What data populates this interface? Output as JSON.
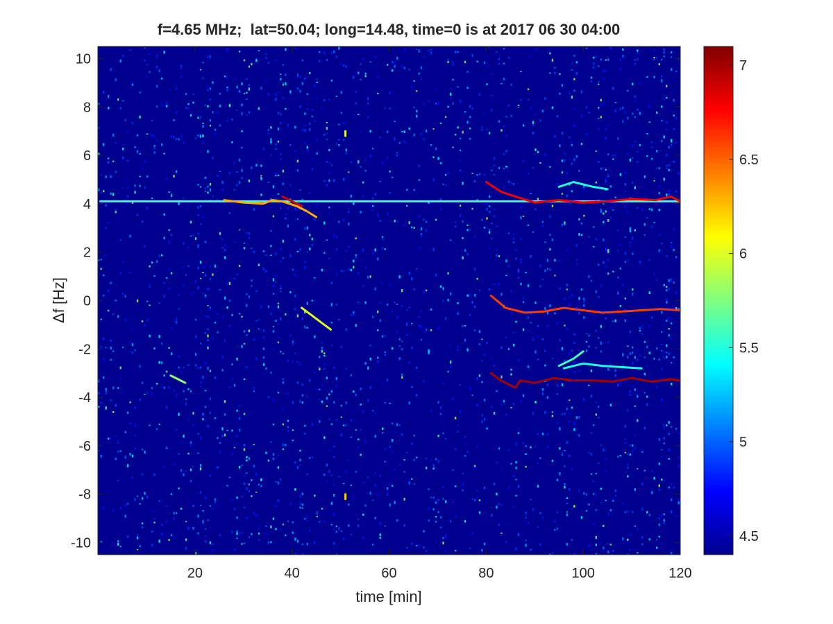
{
  "chart_data": {
    "type": "heatmap",
    "title": "f=4.65 MHz;  lat=50.04; long=14.48, time=0 is at 2017 06 30 04:00",
    "xlabel": "time [min]",
    "ylabel": "Δf [Hz]",
    "xlim": [
      0,
      120
    ],
    "ylim": [
      -10.5,
      10.5
    ],
    "x_ticks": [
      20,
      40,
      60,
      80,
      100,
      120
    ],
    "y_ticks": [
      10,
      8,
      6,
      4,
      2,
      0,
      -2,
      -4,
      -6,
      -8,
      -10
    ],
    "colorbar": {
      "colormap": "jet",
      "range": [
        4.4,
        7.1
      ],
      "ticks": [
        4.5,
        5,
        5.5,
        6,
        6.5,
        7
      ]
    },
    "background_level": 4.5,
    "traces": [
      {
        "points": [
          [
            0.5,
            4.1
          ],
          [
            120,
            4.1
          ]
        ],
        "level": 5.6
      },
      {
        "points": [
          [
            26,
            4.15
          ],
          [
            30,
            4.05
          ],
          [
            34,
            4.0
          ],
          [
            36,
            4.15
          ],
          [
            38,
            4.1
          ],
          [
            41,
            3.9
          ],
          [
            43,
            3.7
          ],
          [
            45,
            3.45
          ]
        ],
        "level": 6.3
      },
      {
        "points": [
          [
            38,
            4.3
          ],
          [
            40,
            4.1
          ],
          [
            42,
            3.9
          ]
        ],
        "level": 6.9
      },
      {
        "points": [
          [
            42,
            -0.3
          ],
          [
            44,
            -0.6
          ],
          [
            46,
            -0.9
          ],
          [
            48,
            -1.2
          ]
        ],
        "level": 6.0
      },
      {
        "points": [
          [
            15,
            -3.1
          ],
          [
            16.5,
            -3.25
          ],
          [
            18,
            -3.4
          ]
        ],
        "level": 5.8
      },
      {
        "points": [
          [
            51,
            7.0
          ],
          [
            51,
            6.8
          ]
        ],
        "level": 6.0
      },
      {
        "points": [
          [
            51,
            -8.0
          ],
          [
            51,
            -8.2
          ]
        ],
        "level": 6.2
      },
      {
        "points": [
          [
            80,
            4.9
          ],
          [
            83,
            4.5
          ],
          [
            86,
            4.3
          ],
          [
            90,
            4.05
          ],
          [
            95,
            4.15
          ],
          [
            100,
            4.05
          ],
          [
            105,
            4.1
          ],
          [
            110,
            4.2
          ],
          [
            115,
            4.15
          ],
          [
            118,
            4.3
          ],
          [
            120,
            4.1
          ]
        ],
        "level": 6.8
      },
      {
        "points": [
          [
            95,
            4.7
          ],
          [
            98,
            4.9
          ],
          [
            102,
            4.7
          ],
          [
            105,
            4.6
          ]
        ],
        "level": 5.5
      },
      {
        "points": [
          [
            81,
            0.2
          ],
          [
            84,
            -0.3
          ],
          [
            88,
            -0.5
          ],
          [
            92,
            -0.45
          ],
          [
            96,
            -0.3
          ],
          [
            100,
            -0.4
          ],
          [
            104,
            -0.5
          ],
          [
            108,
            -0.45
          ],
          [
            112,
            -0.4
          ],
          [
            116,
            -0.35
          ],
          [
            120,
            -0.4
          ]
        ],
        "level": 6.6
      },
      {
        "points": [
          [
            81,
            -3.0
          ],
          [
            83,
            -3.3
          ],
          [
            86,
            -3.6
          ],
          [
            87,
            -3.3
          ],
          [
            90,
            -3.4
          ],
          [
            94,
            -3.2
          ],
          [
            98,
            -3.3
          ],
          [
            102,
            -3.3
          ],
          [
            106,
            -3.35
          ],
          [
            110,
            -3.2
          ],
          [
            114,
            -3.35
          ],
          [
            118,
            -3.25
          ],
          [
            120,
            -3.3
          ]
        ],
        "level": 7.0
      },
      {
        "points": [
          [
            95,
            -2.7
          ],
          [
            98,
            -2.4
          ],
          [
            100,
            -2.1
          ]
        ],
        "level": 5.6
      },
      {
        "points": [
          [
            96,
            -2.8
          ],
          [
            100,
            -2.6
          ],
          [
            104,
            -2.7
          ],
          [
            108,
            -2.75
          ],
          [
            112,
            -2.8
          ]
        ],
        "level": 5.5
      }
    ]
  }
}
